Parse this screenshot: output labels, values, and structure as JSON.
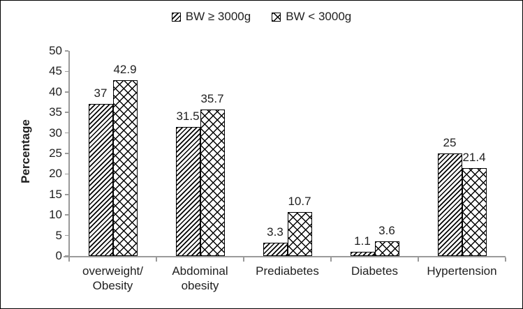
{
  "chart_data": {
    "type": "bar",
    "title": "",
    "xlabel": "",
    "ylabel": "Percentage",
    "ylim": [
      0,
      50
    ],
    "ytick_step": 5,
    "yticks": [
      0,
      5,
      10,
      15,
      20,
      25,
      30,
      35,
      40,
      45,
      50
    ],
    "grid": false,
    "legend_position": "top-center",
    "value_labels_shown": true,
    "categories": [
      "overweight/\nObesity",
      "Abdominal\nobesity",
      "Prediabetes",
      "Diabetes",
      "Hypertension"
    ],
    "series": [
      {
        "name": "BW ≥ 3000g",
        "pattern": "diagonal-hatch",
        "values": [
          37,
          31.5,
          3.3,
          1.1,
          25
        ]
      },
      {
        "name": "BW < 3000g",
        "pattern": "diamond-crosshatch",
        "values": [
          42.9,
          35.7,
          10.7,
          3.6,
          21.4
        ]
      }
    ]
  },
  "colors": {
    "figure_border": "#000000",
    "background": "#ffffff",
    "axis": "#9a9a9a",
    "text": "#1f1f1f",
    "bar_fill": "#ffffff",
    "hatch": "#000000"
  }
}
